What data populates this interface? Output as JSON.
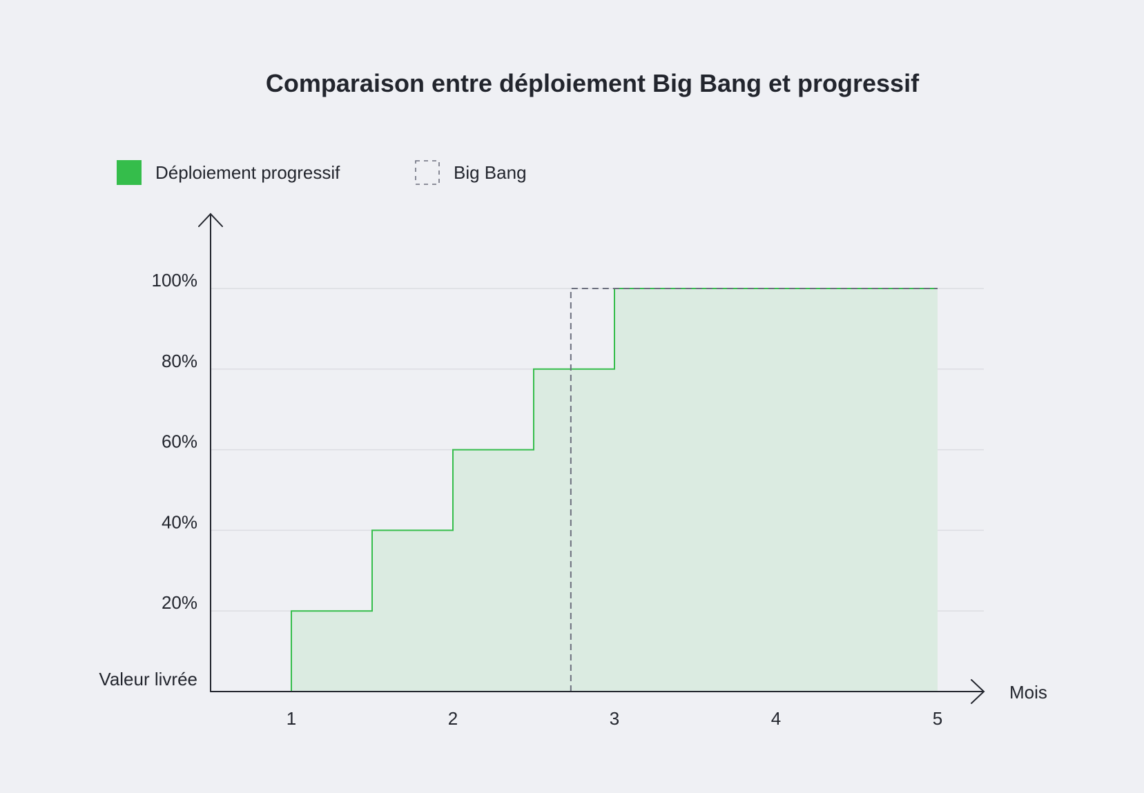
{
  "chart_data": {
    "type": "line",
    "title": "Comparaison entre déploiement Big Bang et progressif",
    "xlabel": "Mois",
    "ylabel": "Valeur livrée",
    "xlim": [
      0.5,
      5.3
    ],
    "ylim": [
      0,
      100
    ],
    "x_ticks": [
      1,
      2,
      3,
      4,
      5
    ],
    "y_ticks": [
      {
        "value": 20,
        "label": "20%"
      },
      {
        "value": 40,
        "label": "40%"
      },
      {
        "value": 60,
        "label": "60%"
      },
      {
        "value": 80,
        "label": "80%"
      },
      {
        "value": 100,
        "label": "100%"
      }
    ],
    "grid": true,
    "legend_position": "top-left",
    "series": [
      {
        "name": "Déploiement progressif",
        "style": "step",
        "color": "#35bd4b",
        "fill_color": "#dbebe1",
        "points": [
          {
            "x": 1,
            "y": 20
          },
          {
            "x": 1.5,
            "y": 40
          },
          {
            "x": 2,
            "y": 60
          },
          {
            "x": 2.5,
            "y": 80
          },
          {
            "x": 3,
            "y": 100
          },
          {
            "x": 5,
            "y": 100
          }
        ]
      },
      {
        "name": "Big Bang",
        "style": "dashed-step",
        "color": "#6b6e7d",
        "points": [
          {
            "x": 2.73,
            "y": 0
          },
          {
            "x": 2.73,
            "y": 100
          },
          {
            "x": 5,
            "y": 100
          }
        ]
      }
    ]
  }
}
